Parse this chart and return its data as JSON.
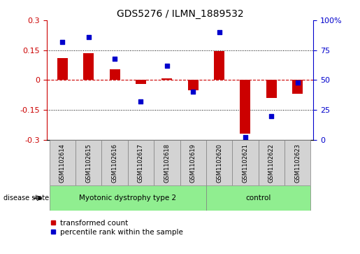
{
  "title": "GDS5276 / ILMN_1889532",
  "samples": [
    "GSM1102614",
    "GSM1102615",
    "GSM1102616",
    "GSM1102617",
    "GSM1102618",
    "GSM1102619",
    "GSM1102620",
    "GSM1102621",
    "GSM1102622",
    "GSM1102623"
  ],
  "transformed_count": [
    0.11,
    0.135,
    0.055,
    -0.02,
    0.01,
    -0.05,
    0.145,
    -0.27,
    -0.09,
    -0.07
  ],
  "percentile_rank": [
    82,
    86,
    68,
    32,
    62,
    40,
    90,
    2,
    20,
    48
  ],
  "group_divider": 6,
  "group_labels": [
    "Myotonic dystrophy type 2",
    "control"
  ],
  "ylim_left": [
    -0.3,
    0.3
  ],
  "ylim_right": [
    0,
    100
  ],
  "yticks_left": [
    -0.3,
    -0.15,
    0,
    0.15,
    0.3
  ],
  "yticks_right": [
    0,
    25,
    50,
    75,
    100
  ],
  "bar_color": "#CC0000",
  "dot_color": "#0000CC",
  "hline_color": "#CC0000",
  "dotted_line_color": "black",
  "group_color": "#90EE90",
  "label_box_color": "#D3D3D3",
  "legend_items": [
    "transformed count",
    "percentile rank within the sample"
  ],
  "legend_colors": [
    "#CC0000",
    "#0000CC"
  ],
  "disease_state_label": "disease state",
  "tick_color_left": "#CC0000",
  "tick_color_right": "#0000CC",
  "bar_width": 0.4
}
